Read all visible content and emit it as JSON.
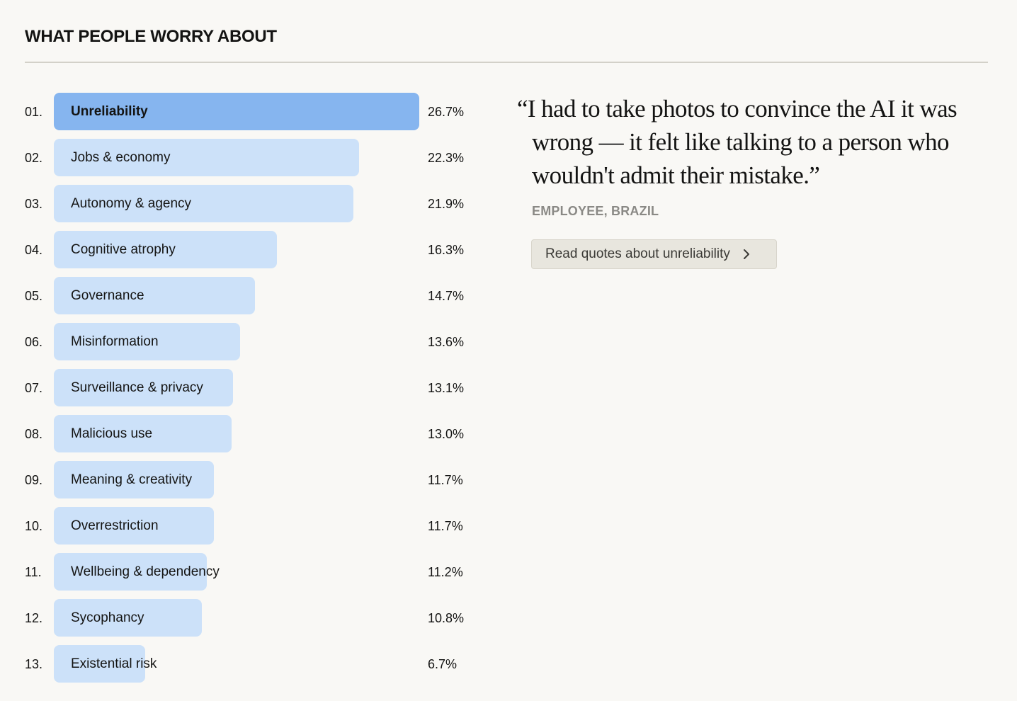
{
  "header": {
    "title": "WHAT PEOPLE WORRY ABOUT"
  },
  "colors": {
    "bar_active": "#86b5ef",
    "bar_default": "#cce1f9",
    "background": "#f9f8f5"
  },
  "chart_data": {
    "type": "bar",
    "orientation": "horizontal",
    "title": "WHAT PEOPLE WORRY ABOUT",
    "xlabel": "",
    "ylabel": "",
    "unit": "%",
    "xlim": [
      0,
      26.7
    ],
    "grid": false,
    "highlighted": "Unreliability",
    "ranks": [
      "01.",
      "02.",
      "03.",
      "04.",
      "05.",
      "06.",
      "07.",
      "08.",
      "09.",
      "10.",
      "11.",
      "12.",
      "13."
    ],
    "categories": [
      "Unreliability",
      "Jobs & economy",
      "Autonomy & agency",
      "Cognitive atrophy",
      "Governance",
      "Misinformation",
      "Surveillance & privacy",
      "Malicious use",
      "Meaning & creativity",
      "Overrestriction",
      "Wellbeing & dependency",
      "Sycophancy",
      "Existential risk"
    ],
    "values": [
      26.7,
      22.3,
      21.9,
      16.3,
      14.7,
      13.6,
      13.1,
      13.0,
      11.7,
      11.7,
      11.2,
      10.8,
      6.7
    ],
    "value_labels": [
      "26.7%",
      "22.3%",
      "21.9%",
      "16.3%",
      "14.7%",
      "13.6%",
      "13.1%",
      "13.0%",
      "11.7%",
      "11.7%",
      "11.2%",
      "10.8%",
      "6.7%"
    ]
  },
  "quote": {
    "text": "“I had to take photos to convince the AI it was wrong — it felt like talking to a person who wouldn't admit their mistake.”",
    "attribution": "EMPLOYEE, BRAZIL",
    "button_label": "Read quotes about unreliability",
    "button_icon": "chevron-right-icon"
  }
}
